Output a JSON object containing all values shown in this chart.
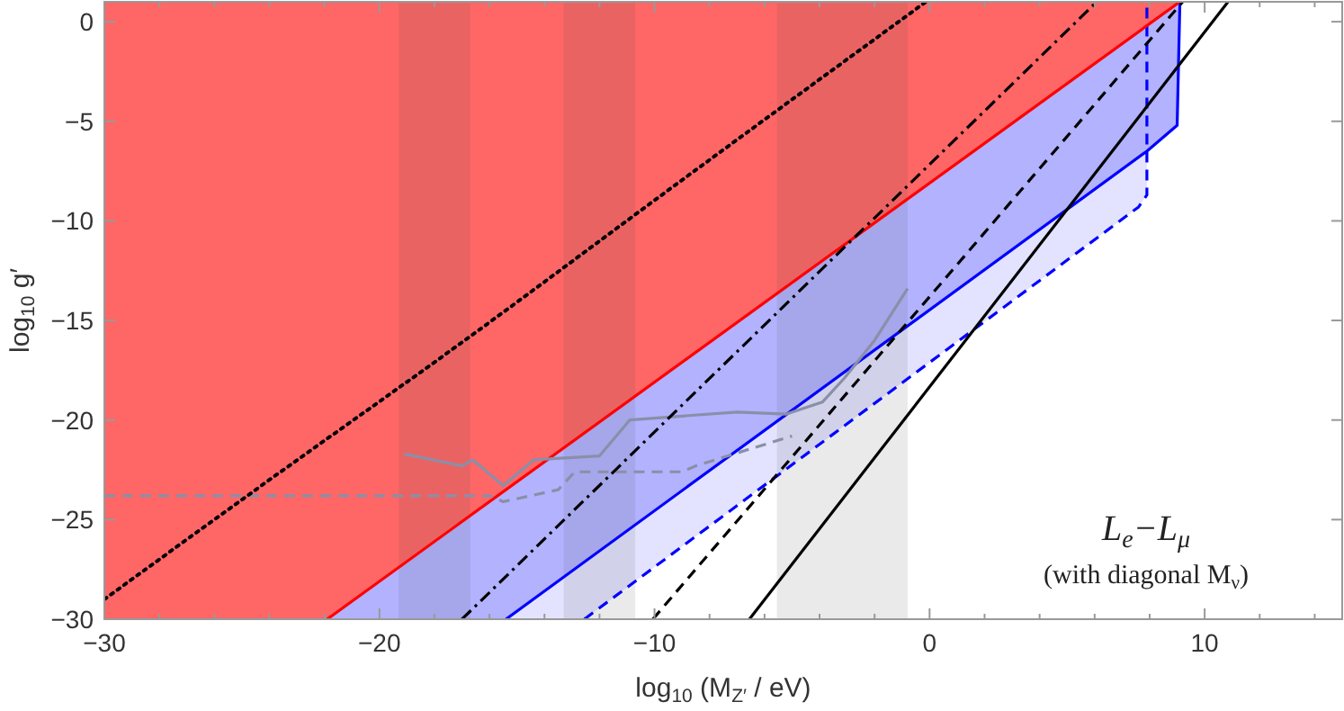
{
  "chart_data": {
    "type": "line",
    "xlabel": "log$_{10}$ (M$_{Z′}$ / eV)",
    "ylabel": "log$_{10}$ g′",
    "xlim": [
      -30,
      15
    ],
    "ylim": [
      -30,
      1
    ],
    "xticks": [
      -30,
      {
        "value": -28,
        "label": null
      },
      {
        "value": -26,
        "label": null
      },
      {
        "value": -24,
        "label": null
      },
      {
        "value": -22,
        "label": null
      },
      -20,
      {
        "value": -18,
        "label": null
      },
      {
        "value": -16,
        "label": null
      },
      {
        "value": -14,
        "label": null
      },
      {
        "value": -12,
        "label": null
      },
      -10,
      {
        "value": -8,
        "label": null
      },
      {
        "value": -6,
        "label": null
      },
      {
        "value": -4,
        "label": null
      },
      {
        "value": -2,
        "label": null
      },
      0,
      {
        "value": 2,
        "label": null
      },
      {
        "value": 4,
        "label": null
      },
      {
        "value": 6,
        "label": null
      },
      {
        "value": 8,
        "label": null
      },
      10,
      {
        "value": 12,
        "label": null
      },
      {
        "value": 14,
        "label": null
      }
    ],
    "yticks": [
      -30,
      -25,
      -20,
      -15,
      -10,
      -5,
      0
    ],
    "series": [
      {
        "color": "#0000ff",
        "line_style": "dashed",
        "x": [
          -15.4,
          -12.55,
          7.6,
          7.9,
          7.9
        ],
        "values": [
          null,
          -30,
          -9.3,
          -8.7,
          1
        ],
        "lower": [
          -30,
          -30,
          -9.3,
          -8.7,
          -6.5
        ],
        "upper": [
          -30,
          -27.1,
          -6.8,
          -6.5,
          -6.5
        ]
      },
      {
        "color": "#0000ff",
        "line_style": "solid",
        "x": [
          -21.9,
          -15.4,
          7.9,
          9.0,
          9.1
        ],
        "values": [
          null,
          -30,
          -6.5,
          -5.2,
          1
        ],
        "lower": [
          -30,
          -30,
          -6.5,
          -5.2,
          1
        ],
        "upper": [
          -30,
          -23.5,
          -0.2,
          0.9,
          1
        ]
      },
      {
        "color": "#ff0000",
        "line_style": "solid",
        "x": [
          -30,
          -21.9,
          9.1
        ],
        "values": [
          null,
          -30,
          1
        ],
        "lower": [
          -30,
          -30,
          1
        ],
        "upper": [
          1,
          1,
          1
        ]
      },
      {
        "color": "#8a8fa8",
        "line_style": "solid",
        "x": [
          -19.1,
          -17.0,
          -16.6,
          -15.5,
          -14.4,
          -12.0,
          -10.9,
          -9.0,
          -7.0,
          -5.2,
          -3.9,
          -3.1,
          -2.0,
          -0.8
        ],
        "values": [
          -21.7,
          -22.3,
          -22.0,
          -23.3,
          -22.0,
          -21.8,
          -20.0,
          -19.8,
          -19.6,
          -19.7,
          -19.1,
          -17.9,
          -16.0,
          -13.4
        ]
      },
      {
        "color": "#8a8fa8",
        "line_style": "dashed",
        "x": [
          -30,
          -16,
          -15.5,
          -13.5,
          -12.9,
          -9.0,
          -8.5,
          -5.7,
          -5.0
        ],
        "values": [
          -23.8,
          -23.8,
          -24.1,
          -23.5,
          -22.6,
          -22.6,
          -22.3,
          -21.1,
          -20.8
        ]
      },
      {
        "color": "#000000",
        "line_style": "dotted",
        "x": [
          -30,
          -24.6,
          -17.0,
          -8.95,
          -0.13
        ],
        "values": [
          -29,
          -23.6,
          -16.1,
          -7.9,
          1
        ]
      },
      {
        "color": "#000000",
        "line_style": "dashdot",
        "x": [
          -17.0,
          6.08
        ],
        "values": [
          -30,
          1
        ]
      },
      {
        "color": "#000000",
        "line_style": "dashed",
        "x": [
          -10.06,
          9.2
        ],
        "values": [
          -30,
          1
        ]
      },
      {
        "color": "#000000",
        "line_style": "solid",
        "x": [
          -6.55,
          10.85
        ],
        "values": [
          -30,
          1
        ]
      }
    ],
    "bands": [
      {
        "axis": "x",
        "from": -19.3,
        "to": -16.7,
        "color": "#505050"
      },
      {
        "axis": "x",
        "from": -13.3,
        "to": -10.7,
        "color": "#505050"
      },
      {
        "axis": "x",
        "from": -5.55,
        "to": -0.8,
        "color": "#505050"
      }
    ],
    "annotations": [
      "L$_{e}$−L$_{μ}$",
      "(with diagonal M$_{ν}$)"
    ]
  }
}
